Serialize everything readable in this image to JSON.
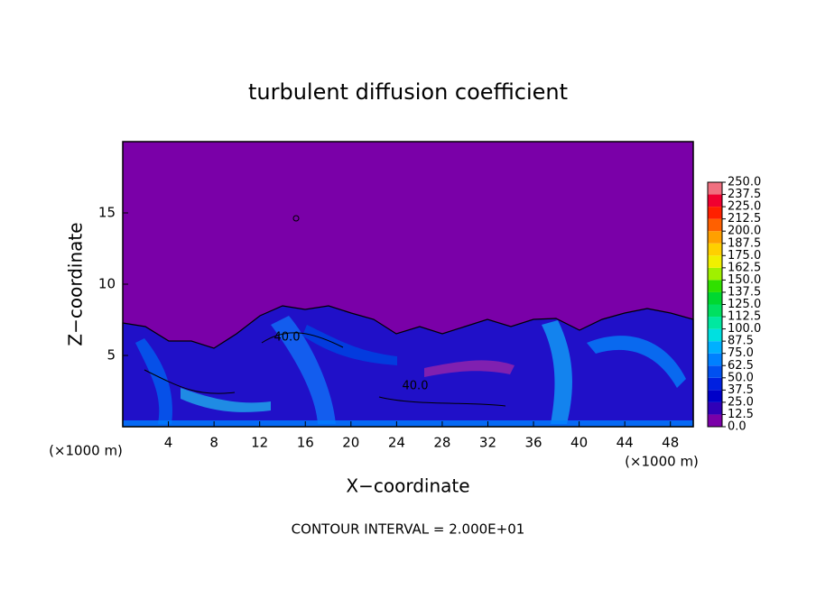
{
  "chart_data": {
    "type": "contour",
    "title": "turbulent diffusion coefficient",
    "xlabel": "X−coordinate",
    "ylabel": "Z−coordinate",
    "x_unit_left": "(×1000 m)",
    "x_unit_right": "(×1000 m)",
    "annotation": "CONTOUR INTERVAL = 2.000E+01",
    "contour_labels": [
      "40.0",
      "40.0"
    ],
    "xlim": [
      0,
      50
    ],
    "xticks": [
      4,
      8,
      12,
      16,
      20,
      24,
      28,
      32,
      36,
      40,
      44,
      48
    ],
    "ylim": [
      0,
      20
    ],
    "yticks": [
      5,
      10,
      15
    ],
    "colorbar": {
      "ticks": [
        {
          "value": 0,
          "label": "0.0"
        },
        {
          "value": 12.5,
          "label": "12.5"
        },
        {
          "value": 25,
          "label": "25.0"
        },
        {
          "value": 37.5,
          "label": "37.5"
        },
        {
          "value": 50,
          "label": "50.0"
        },
        {
          "value": 62.5,
          "label": "62.5"
        },
        {
          "value": 75,
          "label": "75.0"
        },
        {
          "value": 87.5,
          "label": "87.5"
        },
        {
          "value": 100,
          "label": "100.0"
        },
        {
          "value": 112.5,
          "label": "112.5"
        },
        {
          "value": 125,
          "label": "125.0"
        },
        {
          "value": 137.5,
          "label": "137.5"
        },
        {
          "value": 150,
          "label": "150.0"
        },
        {
          "value": 162.5,
          "label": "162.5"
        },
        {
          "value": 175,
          "label": "175.0"
        },
        {
          "value": 187.5,
          "label": "187.5"
        },
        {
          "value": 200,
          "label": "200.0"
        },
        {
          "value": 212.5,
          "label": "212.5"
        },
        {
          "value": 225,
          "label": "225.0"
        },
        {
          "value": 237.5,
          "label": "237.5"
        },
        {
          "value": 250,
          "label": "250.0"
        }
      ],
      "colors": [
        "#7a00a8",
        "#3000b8",
        "#0000c8",
        "#0020e0",
        "#0050f0",
        "#0080ff",
        "#00b0ff",
        "#00e0e0",
        "#00e8a0",
        "#00e060",
        "#00d830",
        "#30e000",
        "#a0f000",
        "#f0f000",
        "#ffd000",
        "#ffa000",
        "#ff6000",
        "#ff2000",
        "#f00030",
        "#f07080"
      ]
    }
  }
}
